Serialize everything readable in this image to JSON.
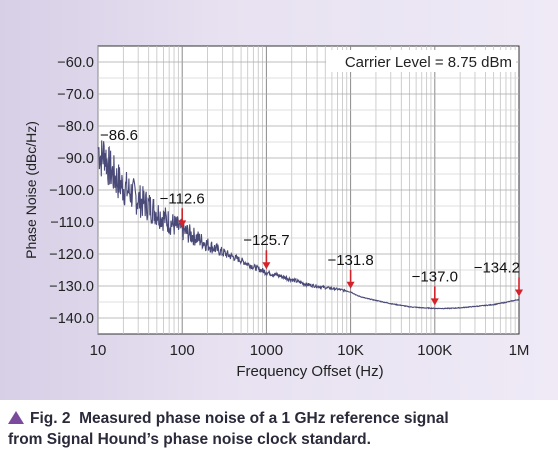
{
  "chart_data": {
    "type": "line",
    "xlabel": "Frequency Offset (Hz)",
    "ylabel": "Phase Noise (dBc/Hz)",
    "x_scale": "log",
    "xlim": [
      10,
      1000000
    ],
    "ylim": [
      -145,
      -55
    ],
    "x_ticks": [
      {
        "value": 10,
        "label": "10"
      },
      {
        "value": 100,
        "label": "100"
      },
      {
        "value": 1000,
        "label": "1000"
      },
      {
        "value": 10000,
        "label": "10K"
      },
      {
        "value": 100000,
        "label": "100K"
      },
      {
        "value": 1000000,
        "label": "1M"
      }
    ],
    "y_ticks": [
      {
        "value": -60,
        "label": "−60.0"
      },
      {
        "value": -70,
        "label": "−70.0"
      },
      {
        "value": -80,
        "label": "−80.0"
      },
      {
        "value": -90,
        "label": "−90.0"
      },
      {
        "value": -100,
        "label": "−100.0"
      },
      {
        "value": -110,
        "label": "−110.0"
      },
      {
        "value": -120,
        "label": "−120.0"
      },
      {
        "value": -130,
        "label": "−130.0"
      },
      {
        "value": -140,
        "label": "−140.0"
      }
    ],
    "grid": true,
    "series": [
      {
        "color": "#4a4a78",
        "x": [
          10,
          11,
          12,
          13,
          15,
          17,
          20,
          25,
          30,
          40,
          50,
          70,
          100,
          150,
          200,
          300,
          500,
          700,
          1000,
          1500,
          2000,
          3000,
          5000,
          7000,
          9000,
          10000,
          12000,
          15000,
          20000,
          30000,
          50000,
          70000,
          100000,
          150000,
          200000,
          300000,
          500000,
          700000,
          1000000
        ],
        "y": [
          -86.6,
          -90,
          -88,
          -92,
          -95,
          -97,
          -99,
          -101,
          -103,
          -105,
          -107,
          -110,
          -112.6,
          -115,
          -117,
          -119.5,
          -122,
          -124,
          -125.7,
          -127,
          -128,
          -129.5,
          -130.5,
          -131,
          -131.5,
          -131.8,
          -133,
          -133.8,
          -134.5,
          -135.5,
          -136.5,
          -136.8,
          -137.0,
          -137,
          -136.8,
          -136.4,
          -135.8,
          -135.1,
          -134.2
        ]
      }
    ],
    "annotations": [
      {
        "label": "−86.6",
        "x": 10,
        "y": -86.6,
        "arrow": false
      },
      {
        "label": "−112.6",
        "x": 100,
        "y": -112.6,
        "arrow": true
      },
      {
        "label": "−125.7",
        "x": 1000,
        "y": -125.7,
        "arrow": true
      },
      {
        "label": "−131.8",
        "x": 10000,
        "y": -131.8,
        "arrow": true
      },
      {
        "label": "−137.0",
        "x": 100000,
        "y": -137.0,
        "arrow": true
      },
      {
        "label": "−134.2",
        "x": 1000000,
        "y": -134.2,
        "arrow": true
      }
    ],
    "note": "Carrier Level = 8.75 dBm",
    "arrow_color": "#d2222a"
  },
  "caption": {
    "label": "Fig. 2",
    "line1": "Measured phase noise of a 1 GHz reference signal",
    "line2": "from Signal Hound’s phase noise clock standard."
  }
}
